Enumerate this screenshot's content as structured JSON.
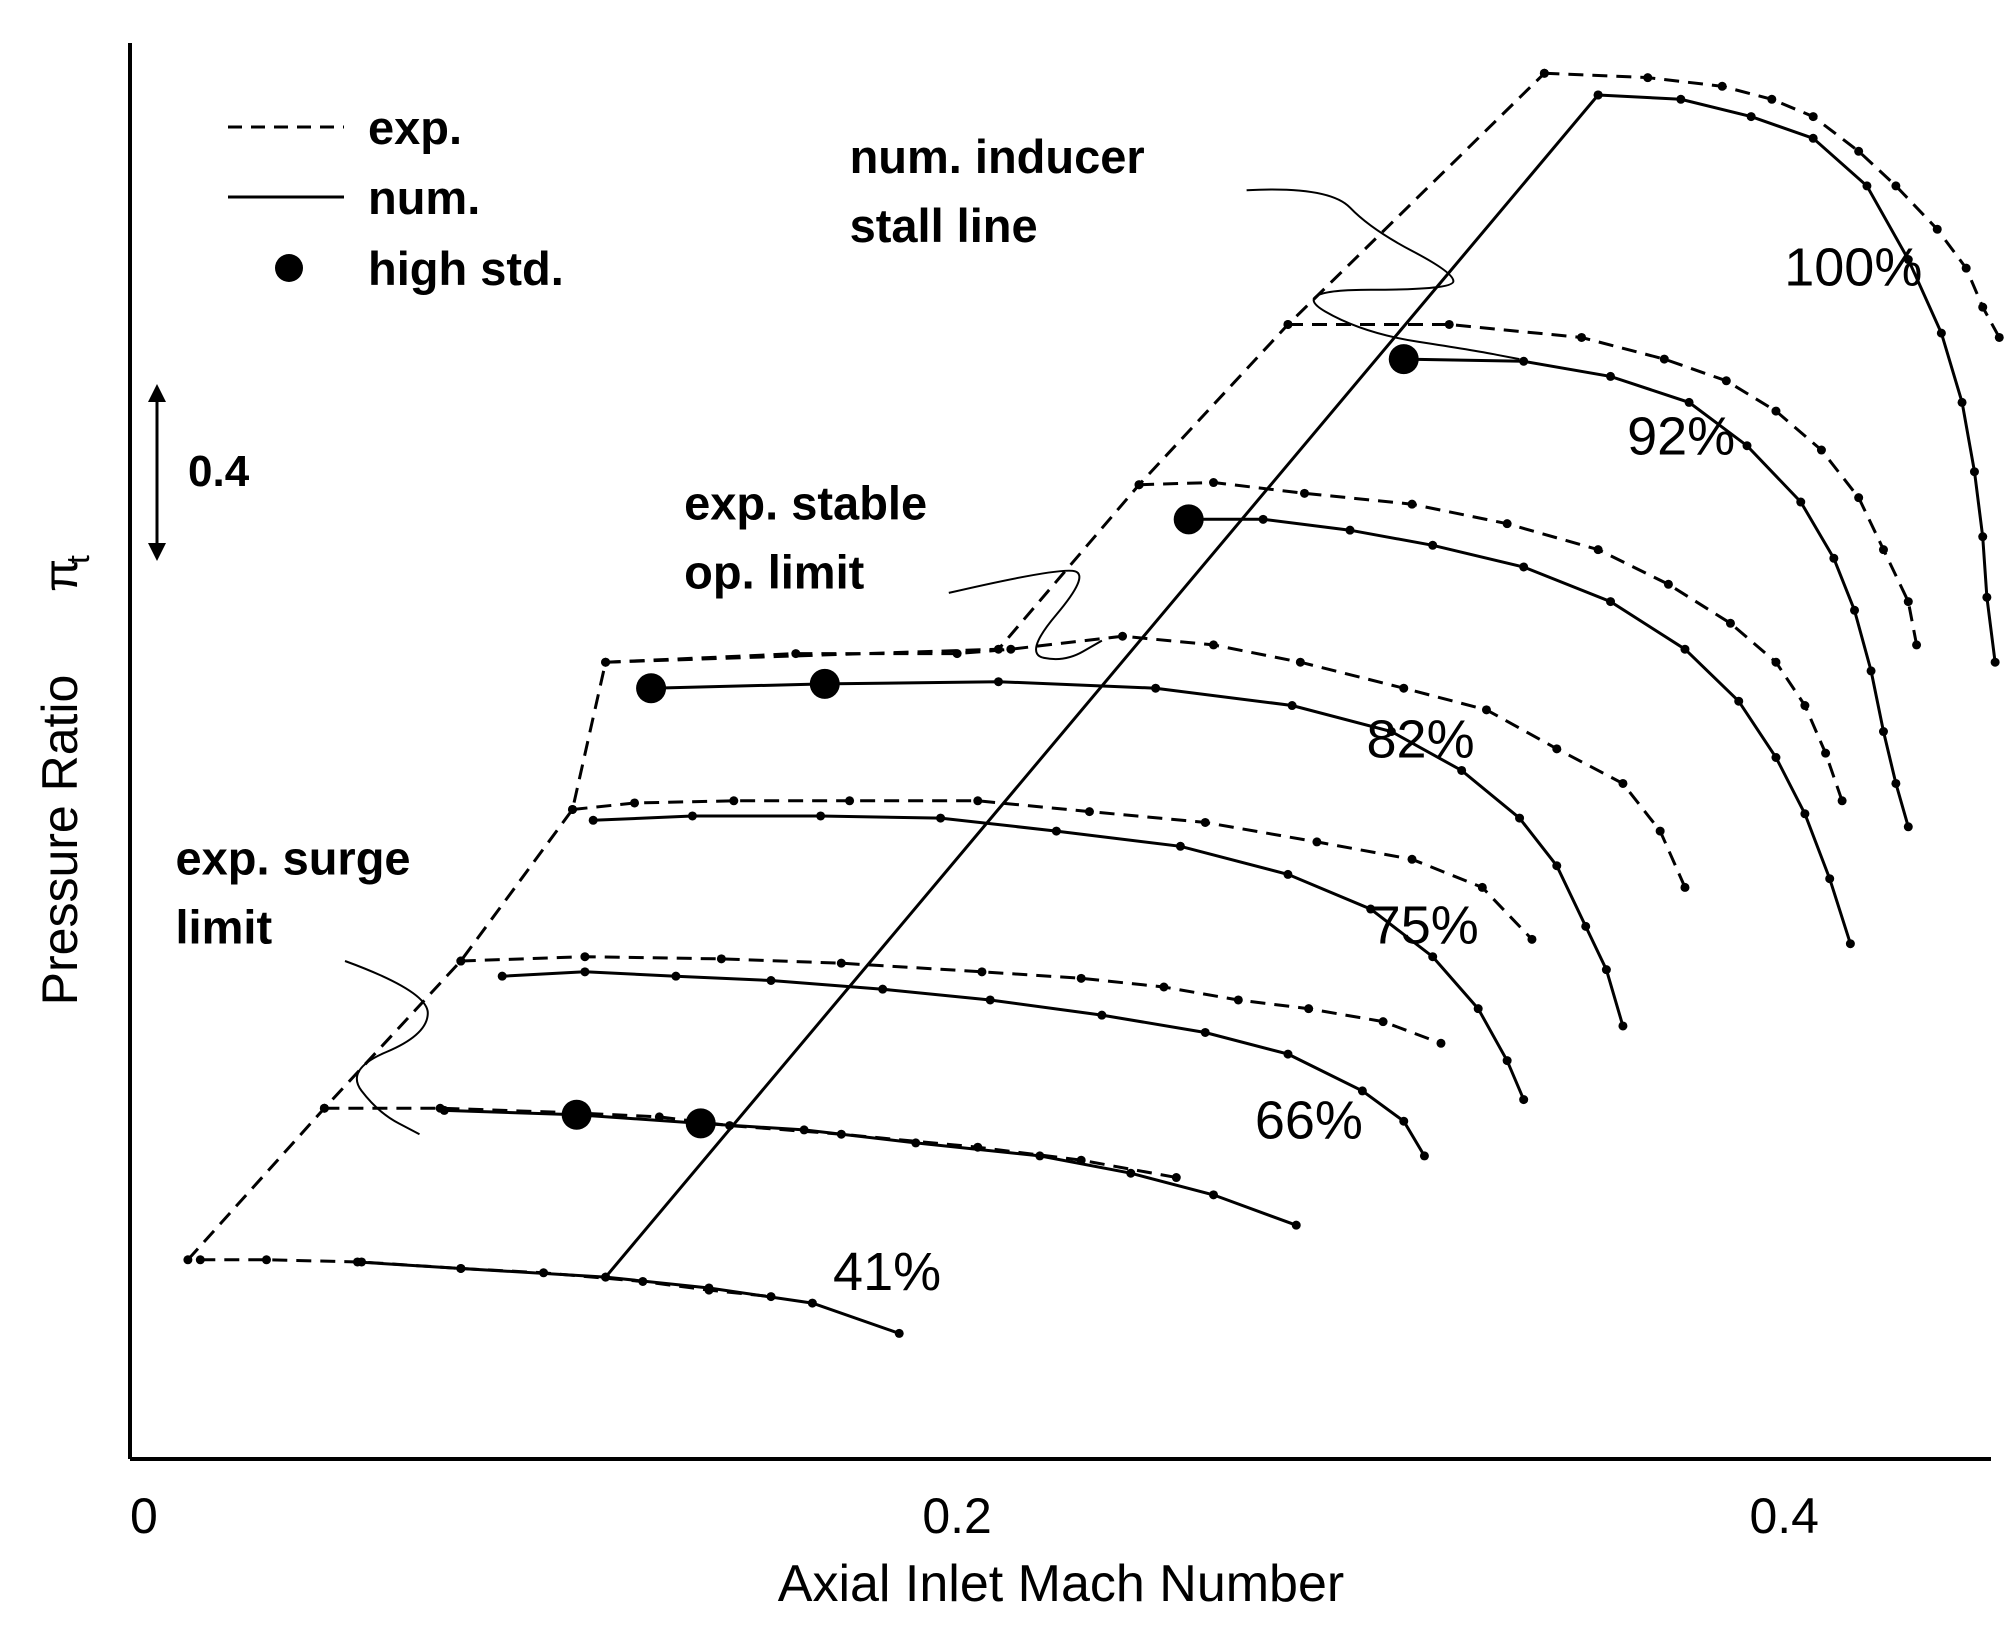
{
  "chart_data": {
    "type": "line",
    "title": "",
    "xlabel": "Axial Inlet Mach Number",
    "ylabel": "Pressure Ratio",
    "ylabel_symbol": "π",
    "ylabel_subscript": "t",
    "xlim": [
      0,
      0.45
    ],
    "ylim": [
      0.28,
      3.55
    ],
    "x_ticks": [
      {
        "value": 0,
        "label": "0"
      },
      {
        "value": 0.2,
        "label": "0.2"
      },
      {
        "value": 0.4,
        "label": "0.4"
      }
    ],
    "y_scale_bar": {
      "label": "0.4",
      "from": 2.15,
      "to": 2.55
    },
    "grid": false,
    "legend": {
      "placement": "top-left",
      "entries": [
        {
          "label": "exp.",
          "style": "dashed"
        },
        {
          "label": "num.",
          "style": "solid"
        },
        {
          "label": "high std.",
          "style": "dot"
        }
      ]
    },
    "speed_labels": [
      {
        "text": "41%",
        "x": 0.17,
        "y": 0.67
      },
      {
        "text": "66%",
        "x": 0.272,
        "y": 1.02
      },
      {
        "text": "75%",
        "x": 0.3,
        "y": 1.47
      },
      {
        "text": "82%",
        "x": 0.299,
        "y": 1.9
      },
      {
        "text": "92%",
        "x": 0.362,
        "y": 2.6
      },
      {
        "text": "100%",
        "x": 0.4,
        "y": 2.99
      }
    ],
    "annotations": [
      {
        "lines": [
          "num. inducer",
          "stall line"
        ],
        "x": 0.174,
        "y": 3.25,
        "leader": [
          [
            0.27,
            3.21
          ],
          [
            0.29,
            3.22
          ],
          [
            0.3,
            3.12
          ],
          [
            0.32,
            3.02
          ],
          [
            0.32,
            2.98
          ],
          [
            0.28,
            2.98
          ],
          [
            0.298,
            2.88
          ],
          [
            0.325,
            2.84
          ],
          [
            0.336,
            2.82
          ]
        ]
      },
      {
        "lines": [
          "exp. stable",
          "op. limit"
        ],
        "x": 0.134,
        "y": 2.45,
        "leader": [
          [
            0.198,
            2.28
          ],
          [
            0.225,
            2.34
          ],
          [
            0.232,
            2.32
          ],
          [
            0.216,
            2.14
          ],
          [
            0.226,
            2.12
          ],
          [
            0.235,
            2.17
          ]
        ]
      },
      {
        "lines": [
          "exp. surge",
          "limit"
        ],
        "x": 0.011,
        "y": 1.63,
        "leader": [
          [
            0.052,
            1.43
          ],
          [
            0.072,
            1.36
          ],
          [
            0.072,
            1.26
          ],
          [
            0.052,
            1.18
          ],
          [
            0.06,
            1.08
          ],
          [
            0.07,
            1.03
          ]
        ]
      }
    ],
    "series": [
      {
        "name": "exp.",
        "speed": "41%",
        "style": "dashed",
        "points": [
          [
            0.017,
            0.74
          ],
          [
            0.033,
            0.74
          ],
          [
            0.056,
            0.735
          ],
          [
            0.08,
            0.72
          ],
          [
            0.1,
            0.71
          ],
          [
            0.124,
            0.69
          ],
          [
            0.14,
            0.67
          ],
          [
            0.155,
            0.655
          ]
        ]
      },
      {
        "name": "num.",
        "speed": "41%",
        "style": "solid",
        "points": [
          [
            0.055,
            0.735
          ],
          [
            0.08,
            0.72
          ],
          [
            0.115,
            0.7
          ],
          [
            0.14,
            0.675
          ],
          [
            0.165,
            0.64
          ],
          [
            0.186,
            0.57
          ]
        ]
      },
      {
        "name": "exp.",
        "speed": "66%",
        "style": "dashed",
        "points": [
          [
            0.047,
            1.09
          ],
          [
            0.075,
            1.09
          ],
          [
            0.106,
            1.08
          ],
          [
            0.128,
            1.07
          ],
          [
            0.145,
            1.05
          ],
          [
            0.172,
            1.03
          ],
          [
            0.205,
            1
          ],
          [
            0.23,
            0.97
          ],
          [
            0.253,
            0.93
          ]
        ]
      },
      {
        "name": "num.",
        "speed": "66%",
        "style": "solid",
        "points": [
          [
            0.076,
            1.085
          ],
          [
            0.108,
            1.075
          ],
          [
            0.138,
            1.055
          ],
          [
            0.163,
            1.04
          ],
          [
            0.19,
            1.01
          ],
          [
            0.22,
            0.98
          ],
          [
            0.242,
            0.94
          ],
          [
            0.262,
            0.89
          ],
          [
            0.282,
            0.82
          ]
        ]
      },
      {
        "name": "exp.",
        "speed": "75%",
        "style": "dashed",
        "points": [
          [
            0.08,
            1.43
          ],
          [
            0.11,
            1.44
          ],
          [
            0.143,
            1.435
          ],
          [
            0.172,
            1.425
          ],
          [
            0.206,
            1.405
          ],
          [
            0.23,
            1.39
          ],
          [
            0.25,
            1.37
          ],
          [
            0.268,
            1.34
          ],
          [
            0.285,
            1.32
          ],
          [
            0.303,
            1.29
          ],
          [
            0.317,
            1.24
          ]
        ]
      },
      {
        "name": "num.",
        "speed": "75%",
        "style": "solid",
        "points": [
          [
            0.09,
            1.395
          ],
          [
            0.11,
            1.405
          ],
          [
            0.132,
            1.395
          ],
          [
            0.155,
            1.385
          ],
          [
            0.182,
            1.365
          ],
          [
            0.208,
            1.34
          ],
          [
            0.235,
            1.305
          ],
          [
            0.26,
            1.265
          ],
          [
            0.28,
            1.215
          ],
          [
            0.298,
            1.13
          ],
          [
            0.308,
            1.06
          ],
          [
            0.313,
            0.98
          ]
        ]
      },
      {
        "name": "exp.",
        "speed": "82%",
        "style": "dashed",
        "points": [
          [
            0.107,
            1.78
          ],
          [
            0.122,
            1.795
          ],
          [
            0.146,
            1.8
          ],
          [
            0.174,
            1.8
          ],
          [
            0.205,
            1.8
          ],
          [
            0.232,
            1.775
          ],
          [
            0.26,
            1.75
          ],
          [
            0.287,
            1.705
          ],
          [
            0.31,
            1.665
          ],
          [
            0.327,
            1.6
          ],
          [
            0.339,
            1.48
          ]
        ]
      },
      {
        "name": "num.",
        "speed": "82%",
        "style": "solid",
        "points": [
          [
            0.112,
            1.755
          ],
          [
            0.136,
            1.765
          ],
          [
            0.167,
            1.765
          ],
          [
            0.196,
            1.76
          ],
          [
            0.224,
            1.73
          ],
          [
            0.254,
            1.695
          ],
          [
            0.28,
            1.63
          ],
          [
            0.3,
            1.55
          ],
          [
            0.315,
            1.44
          ],
          [
            0.326,
            1.32
          ],
          [
            0.333,
            1.2
          ],
          [
            0.337,
            1.11
          ]
        ]
      },
      {
        "name": "exp.",
        "speed": "100%/stall",
        "style": "dashed",
        "points": [
          [
            0.115,
            2.12
          ],
          [
            0.161,
            2.14
          ],
          [
            0.2,
            2.14
          ],
          [
            0.213,
            2.15
          ],
          [
            0.24,
            2.18
          ],
          [
            0.262,
            2.16
          ],
          [
            0.283,
            2.12
          ],
          [
            0.308,
            2.06
          ],
          [
            0.328,
            2.01
          ],
          [
            0.345,
            1.92
          ],
          [
            0.361,
            1.84
          ],
          [
            0.37,
            1.73
          ],
          [
            0.376,
            1.6
          ]
        ]
      },
      {
        "name": "num.",
        "speed": "82%",
        "style": "solid",
        "points": [
          [
            0.126,
            2.06
          ],
          [
            0.168,
            2.07
          ],
          [
            0.21,
            2.075
          ],
          [
            0.248,
            2.06
          ],
          [
            0.281,
            2.02
          ],
          [
            0.305,
            1.96
          ],
          [
            0.322,
            1.87
          ],
          [
            0.336,
            1.76
          ],
          [
            0.345,
            1.65
          ],
          [
            0.352,
            1.51
          ],
          [
            0.357,
            1.41
          ],
          [
            0.361,
            1.28
          ]
        ]
      },
      {
        "name": "exp.",
        "speed": "92%",
        "style": "dashed",
        "points": [
          [
            0.244,
            2.53
          ],
          [
            0.262,
            2.535
          ],
          [
            0.284,
            2.51
          ],
          [
            0.31,
            2.485
          ],
          [
            0.333,
            2.44
          ],
          [
            0.355,
            2.38
          ],
          [
            0.372,
            2.3
          ],
          [
            0.387,
            2.21
          ],
          [
            0.398,
            2.12
          ],
          [
            0.405,
            2.02
          ],
          [
            0.41,
            1.91
          ],
          [
            0.414,
            1.8
          ]
        ]
      },
      {
        "name": "num.",
        "speed": "92%",
        "style": "solid",
        "points": [
          [
            0.256,
            2.45
          ],
          [
            0.274,
            2.45
          ],
          [
            0.295,
            2.425
          ],
          [
            0.315,
            2.39
          ],
          [
            0.337,
            2.34
          ],
          [
            0.358,
            2.26
          ],
          [
            0.376,
            2.15
          ],
          [
            0.389,
            2.03
          ],
          [
            0.398,
            1.9
          ],
          [
            0.405,
            1.77
          ],
          [
            0.411,
            1.62
          ],
          [
            0.416,
            1.47
          ]
        ]
      },
      {
        "name": "exp.",
        "speed": "92%",
        "style": "dashed",
        "points": [
          [
            0.28,
            2.9
          ],
          [
            0.319,
            2.9
          ],
          [
            0.351,
            2.87
          ],
          [
            0.371,
            2.82
          ],
          [
            0.386,
            2.77
          ],
          [
            0.398,
            2.7
          ],
          [
            0.409,
            2.61
          ],
          [
            0.418,
            2.5
          ],
          [
            0.424,
            2.38
          ],
          [
            0.43,
            2.26
          ],
          [
            0.432,
            2.16
          ]
        ]
      },
      {
        "name": "num.",
        "speed": "92%",
        "style": "solid",
        "points": [
          [
            0.308,
            2.82
          ],
          [
            0.337,
            2.815
          ],
          [
            0.358,
            2.78
          ],
          [
            0.377,
            2.72
          ],
          [
            0.391,
            2.62
          ],
          [
            0.404,
            2.49
          ],
          [
            0.412,
            2.36
          ],
          [
            0.417,
            2.24
          ],
          [
            0.421,
            2.1
          ],
          [
            0.424,
            1.96
          ],
          [
            0.427,
            1.84
          ],
          [
            0.43,
            1.74
          ]
        ]
      },
      {
        "name": "exp.",
        "speed": "100%",
        "style": "dashed",
        "points": [
          [
            0.342,
            3.48
          ],
          [
            0.367,
            3.47
          ],
          [
            0.385,
            3.45
          ],
          [
            0.397,
            3.42
          ],
          [
            0.407,
            3.38
          ],
          [
            0.418,
            3.3
          ],
          [
            0.427,
            3.22
          ],
          [
            0.437,
            3.12
          ],
          [
            0.444,
            3.03
          ],
          [
            0.448,
            2.94
          ],
          [
            0.452,
            2.87
          ]
        ]
      },
      {
        "name": "num.",
        "speed": "100%",
        "style": "solid",
        "points": [
          [
            0.355,
            3.43
          ],
          [
            0.375,
            3.42
          ],
          [
            0.392,
            3.38
          ],
          [
            0.407,
            3.33
          ],
          [
            0.42,
            3.22
          ],
          [
            0.43,
            3.05
          ],
          [
            0.438,
            2.88
          ],
          [
            0.443,
            2.72
          ],
          [
            0.446,
            2.56
          ],
          [
            0.448,
            2.41
          ],
          [
            0.449,
            2.27
          ],
          [
            0.451,
            2.12
          ]
        ]
      },
      {
        "name": "exp.",
        "speed": "surge limit",
        "style": "dashed",
        "points": [
          [
            0.014,
            0.74
          ],
          [
            0.047,
            1.09
          ],
          [
            0.08,
            1.43
          ],
          [
            0.107,
            1.78
          ],
          [
            0.115,
            2.12
          ],
          [
            0.21,
            2.15
          ],
          [
            0.244,
            2.53
          ],
          [
            0.28,
            2.9
          ],
          [
            0.342,
            3.48
          ]
        ]
      },
      {
        "name": "num.",
        "speed": "stall line",
        "style": "solid",
        "points": [
          [
            0.115,
            0.7
          ],
          [
            0.355,
            3.43
          ]
        ]
      }
    ],
    "high_std_points": [
      [
        0.126,
        2.06
      ],
      [
        0.168,
        2.07
      ],
      [
        0.138,
        1.055
      ],
      [
        0.108,
        1.075
      ],
      [
        0.256,
        2.45
      ],
      [
        0.308,
        2.82
      ]
    ]
  }
}
